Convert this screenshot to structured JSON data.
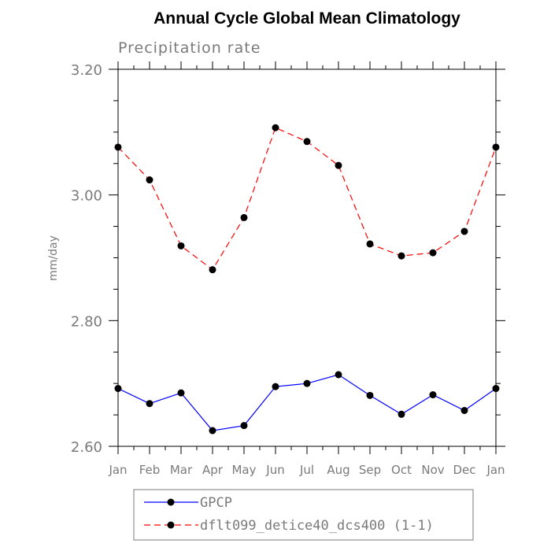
{
  "chart_data": {
    "type": "line",
    "title": "Annual Cycle Global Mean Climatology",
    "subtitle": "Precipitation rate",
    "xlabel": "",
    "ylabel": "mm/day",
    "categories": [
      "Jan",
      "Feb",
      "Mar",
      "Apr",
      "May",
      "Jun",
      "Jul",
      "Aug",
      "Sep",
      "Oct",
      "Nov",
      "Dec",
      "Jan"
    ],
    "ylim": [
      2.6,
      3.2
    ],
    "yticks": [
      2.6,
      2.8,
      3.0,
      3.2
    ],
    "ytick_labels": [
      "2.60",
      "2.80",
      "3.00",
      "3.20"
    ],
    "grid": false,
    "legend_position": "bottom",
    "series": [
      {
        "name": "GPCP",
        "color": "#0000ff",
        "line_style": "solid",
        "marker": "circle",
        "values": [
          2.692,
          2.668,
          2.685,
          2.625,
          2.633,
          2.695,
          2.7,
          2.714,
          2.681,
          2.651,
          2.682,
          2.657,
          2.692
        ]
      },
      {
        "name": "dflt099_detice40_dcs400 (1-1)",
        "color": "#ff0000",
        "line_style": "dashed",
        "marker": "circle",
        "values": [
          3.076,
          3.024,
          2.919,
          2.881,
          2.964,
          3.107,
          3.085,
          3.047,
          2.922,
          2.903,
          2.908,
          2.942,
          3.076
        ]
      }
    ]
  }
}
